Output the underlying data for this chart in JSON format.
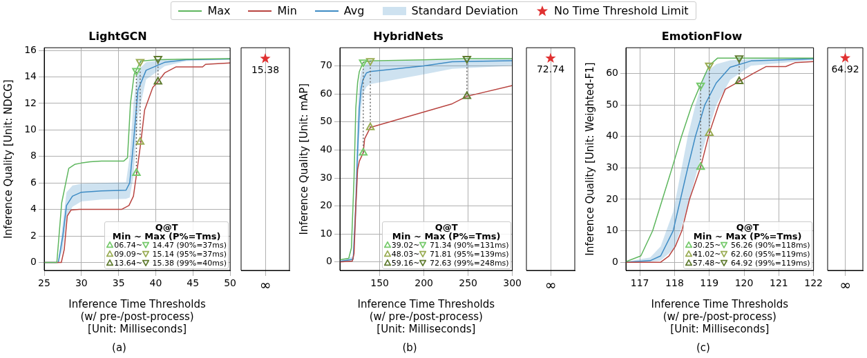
{
  "chart_data": [
    {
      "type": "line",
      "title": "LightGCN",
      "xlabel": "Inference Time Thresholds\n(w/ pre-/post-process)\n[Unit: Milliseconds]",
      "ylabel": "Inference Quality [Unit: NDCG]",
      "xlim": [
        25,
        50
      ],
      "xticks": [
        25,
        30,
        35,
        40,
        45,
        50
      ],
      "ylim": [
        -0.6,
        16.2
      ],
      "yticks": [
        0,
        2,
        4,
        6,
        8,
        10,
        12,
        14,
        16
      ],
      "grid": true,
      "legend": "top",
      "legend_title": "Q@T\nMin ~ Max (P%=Tms)",
      "annotations": [
        "(a)",
        "Standard Deviation"
      ],
      "series": [
        {
          "name": "Max",
          "color": "#5db65d",
          "x": [
            25,
            26.7,
            27.35,
            28.3,
            29.1,
            30,
            31.2,
            32.7,
            35.7,
            36.2,
            36.6,
            37.1,
            38,
            40.3,
            50
          ],
          "values": [
            0,
            0,
            4.5,
            7.1,
            7.4,
            7.5,
            7.6,
            7.65,
            7.65,
            7.9,
            12,
            14.2,
            15.2,
            15.3,
            15.38
          ]
        },
        {
          "name": "Min",
          "color": "#b8433f",
          "x": [
            25,
            27.3,
            27.7,
            28.1,
            28.6,
            29.7,
            35.4,
            36.4,
            37,
            37.5,
            38,
            38.5,
            39.6,
            40.3,
            41.2,
            42.7,
            46.3,
            46.7,
            50
          ],
          "values": [
            0,
            0,
            1,
            3.5,
            3.95,
            4,
            4,
            4.3,
            5,
            7,
            9.09,
            11.5,
            13.2,
            13.64,
            14.3,
            14.75,
            14.75,
            14.95,
            15.05
          ]
        },
        {
          "name": "Avg",
          "color": "#3d8bc4",
          "x": [
            25,
            26.9,
            27.5,
            28,
            28.8,
            30,
            32.7,
            36,
            36.5,
            37,
            37.6,
            38.7,
            41.2,
            44.1,
            50
          ],
          "values": [
            0,
            0,
            2,
            4.3,
            5.0,
            5.3,
            5.4,
            5.45,
            6,
            9,
            13,
            14.5,
            15.1,
            15.3,
            15.35
          ],
          "lower": [
            0,
            0,
            1,
            3.3,
            4.2,
            4.6,
            4.75,
            4.8,
            4.9,
            6.5,
            11,
            13.8,
            14.8,
            15.2,
            15.3
          ],
          "upper": [
            0,
            0,
            3,
            5.3,
            5.8,
            5.95,
            6.0,
            6.05,
            8,
            12,
            14.5,
            15.1,
            15.3,
            15.35,
            15.38
          ]
        },
        {
          "name": "06.74~ 14.47 (90%=37ms)",
          "type": "line",
          "marker": "triangle",
          "line_style": "dotted",
          "color": "#74c96a",
          "x": [
            37.4,
            37.4
          ],
          "values": [
            6.74,
            14.47
          ]
        },
        {
          "name": "09.09~ 15.14 (95%=37ms)",
          "type": "line",
          "marker": "triangle",
          "line_style": "dotted",
          "color": "#99ac52",
          "x": [
            37.9,
            37.9
          ],
          "values": [
            9.09,
            15.14
          ]
        },
        {
          "name": "13.64~ 15.38 (99%=40ms)",
          "type": "line",
          "marker": "triangle",
          "line_style": "dotted",
          "color": "#5f7b2f",
          "x": [
            40.3,
            40.3
          ],
          "values": [
            13.64,
            15.38
          ]
        }
      ]
    },
    {
      "type": "scatter",
      "categories": [
        "∞"
      ],
      "ylim": [
        -0.6,
        16.2
      ],
      "yticks": [
        0,
        2,
        4,
        6,
        8,
        10,
        12,
        14,
        16
      ],
      "grid": "x",
      "tick_labels": "x",
      "legend": "top",
      "marker": "star",
      "data_labels": true,
      "series": [
        {
          "name": "No Time Threshold Limit",
          "color": "#e03131",
          "values": [
            15.38
          ]
        }
      ]
    },
    {
      "type": "line",
      "title": "HybridNets",
      "xlabel": "Inference Time Thresholds\n(w/ pre-/post-process)\n[Unit: Milliseconds]",
      "ylabel": "Inference Quality [Unit: mAP]",
      "xlim": [
        105,
        300
      ],
      "xticks": [
        150,
        200,
        250,
        300
      ],
      "ylim": [
        -3,
        76.5
      ],
      "yticks": [
        0,
        10,
        20,
        30,
        40,
        50,
        60,
        70
      ],
      "grid": true,
      "legend": "bottom right",
      "legend_title": "Q@T\nMin ~ Max (P%=Tms)",
      "annotations": [
        "(b)"
      ],
      "series": [
        {
          "color": "#5db65d",
          "x": [
            105,
            115,
            118,
            121,
            123,
            125,
            127,
            131.4,
            139.4,
            200,
            248.6,
            300
          ],
          "values": [
            0.8,
            1.3,
            5,
            30,
            55,
            64,
            68,
            71.34,
            71.81,
            72.2,
            72.63,
            72.6
          ]
        },
        {
          "color": "#b8433f",
          "x": [
            105,
            119,
            121,
            123,
            125,
            127,
            131.4,
            133,
            139.4,
            232,
            248.6,
            300
          ],
          "values": [
            0,
            0.3,
            3,
            20,
            33,
            36,
            39.02,
            44,
            48.03,
            56.5,
            59.16,
            63
          ]
        },
        {
          "color": "#3d8bc4",
          "x": [
            105,
            120,
            123,
            125,
            127,
            129,
            131,
            135,
            139,
            200,
            232,
            300
          ],
          "values": [
            0.2,
            1,
            20,
            40,
            55,
            62,
            65,
            67.5,
            68,
            70,
            71.5,
            71.9
          ],
          "lower": [
            0,
            0.3,
            12,
            28,
            45,
            55,
            60,
            62.5,
            63.5,
            67,
            69,
            70.1
          ],
          "upper": [
            0.5,
            2,
            30,
            52,
            64,
            68,
            69,
            71,
            71.5,
            72,
            72.2,
            72.4
          ]
        },
        {
          "name": "39.02~ 71.34 (90%=131ms)",
          "type": "line",
          "marker": "triangle",
          "line_style": "dotted",
          "color": "#74c96a",
          "x": [
            131.4,
            131.4
          ],
          "values": [
            39.02,
            71.34
          ]
        },
        {
          "name": "48.03~ 71.81 (95%=139ms)",
          "type": "line",
          "marker": "triangle",
          "line_style": "dotted",
          "color": "#99ac52",
          "x": [
            139.4,
            139.4
          ],
          "values": [
            48.03,
            71.81
          ]
        },
        {
          "name": "59.16~ 72.63 (99%=248ms)",
          "type": "line",
          "marker": "triangle",
          "line_style": "dotted",
          "color": "#5f7b2f",
          "x": [
            248.6,
            248.6
          ],
          "values": [
            59.16,
            72.63
          ]
        }
      ]
    },
    {
      "type": "scatter",
      "categories": [
        "∞"
      ],
      "ylim": [
        -3,
        76.5
      ],
      "yticks": [
        0,
        10,
        20,
        30,
        40,
        50,
        60,
        70
      ],
      "grid": "x",
      "tick_labels": "x",
      "marker": "star",
      "data_labels": true,
      "series": [
        {
          "color": "#e03131",
          "values": [
            72.74
          ]
        }
      ]
    },
    {
      "type": "line",
      "title": "EmotionFlow",
      "xlabel": "Inference Time Thresholds\n(w/ pre-/post-process)\n[Unit: Milliseconds]",
      "ylabel": "Inference Quality [Unit: Weighted-F1]",
      "xlim": [
        116.6,
        122
      ],
      "xticks": [
        117,
        118,
        119,
        120,
        121,
        122
      ],
      "ylim": [
        -2.6,
        68.2
      ],
      "yticks": [
        0,
        10,
        20,
        30,
        40,
        50,
        60
      ],
      "grid": true,
      "legend": "bottom right",
      "legend_title": "Q@T\nMin ~ Max (P%=Tms)",
      "annotations": [
        "(c)"
      ],
      "series": [
        {
          "color": "#5db65d",
          "x": [
            116.6,
            117.03,
            117.37,
            117.65,
            117.93,
            118.2,
            118.5,
            118.74,
            119.0,
            119.24,
            122
          ],
          "values": [
            0.2,
            2,
            10,
            20,
            30,
            40,
            50,
            56.26,
            62.6,
            64.92,
            64.92
          ]
        },
        {
          "color": "#b8433f",
          "x": [
            116.6,
            117.6,
            117.84,
            118.02,
            118.21,
            118.43,
            118.75,
            119.0,
            119.27,
            119.46,
            119.86,
            120.26,
            120.63,
            121.2,
            121.48,
            122
          ],
          "values": [
            0,
            0,
            2,
            5,
            10,
            20,
            30.25,
            41.02,
            50,
            55,
            57.48,
            60,
            62.2,
            62.2,
            63.5,
            63.8
          ]
        },
        {
          "color": "#3d8bc4",
          "x": [
            116.6,
            117.3,
            117.6,
            117.96,
            118.17,
            118.38,
            118.6,
            118.87,
            119.2,
            119.6,
            120.2,
            122
          ],
          "values": [
            0,
            0.5,
            2,
            10,
            20,
            30,
            40,
            50,
            57,
            62,
            64,
            64.7
          ],
          "lower": [
            0,
            0.1,
            0.5,
            4,
            10,
            18,
            27,
            38,
            50,
            58,
            62.5,
            64.3
          ],
          "upper": [
            0.2,
            1.5,
            5,
            16,
            28,
            40,
            50,
            60,
            63,
            64.2,
            64.6,
            64.9
          ]
        },
        {
          "name": "30.25~ 56.26 (90%=118ms)",
          "type": "line",
          "marker": "triangle",
          "line_style": "dotted",
          "color": "#74c96a",
          "x": [
            118.75,
            118.75
          ],
          "values": [
            30.25,
            56.26
          ]
        },
        {
          "name": "41.02~ 62.60 (95%=119ms)",
          "type": "line",
          "marker": "triangle",
          "line_style": "dotted",
          "color": "#99ac52",
          "x": [
            119.0,
            119.0
          ],
          "values": [
            41.02,
            62.6
          ]
        },
        {
          "name": "57.48~ 64.92 (99%=119ms)",
          "type": "line",
          "marker": "triangle",
          "line_style": "dotted",
          "color": "#5f7b2f",
          "x": [
            119.86,
            119.86
          ],
          "values": [
            57.48,
            64.92
          ]
        }
      ]
    },
    {
      "type": "scatter",
      "categories": [
        "∞"
      ],
      "ylim": [
        -2.6,
        68.2
      ],
      "yticks": [
        0,
        10,
        20,
        30,
        40,
        50,
        60
      ],
      "grid": "x",
      "tick_labels": "x",
      "marker": "star",
      "data_labels": true,
      "series": [
        {
          "color": "#e03131",
          "values": [
            64.92
          ]
        }
      ]
    }
  ]
}
